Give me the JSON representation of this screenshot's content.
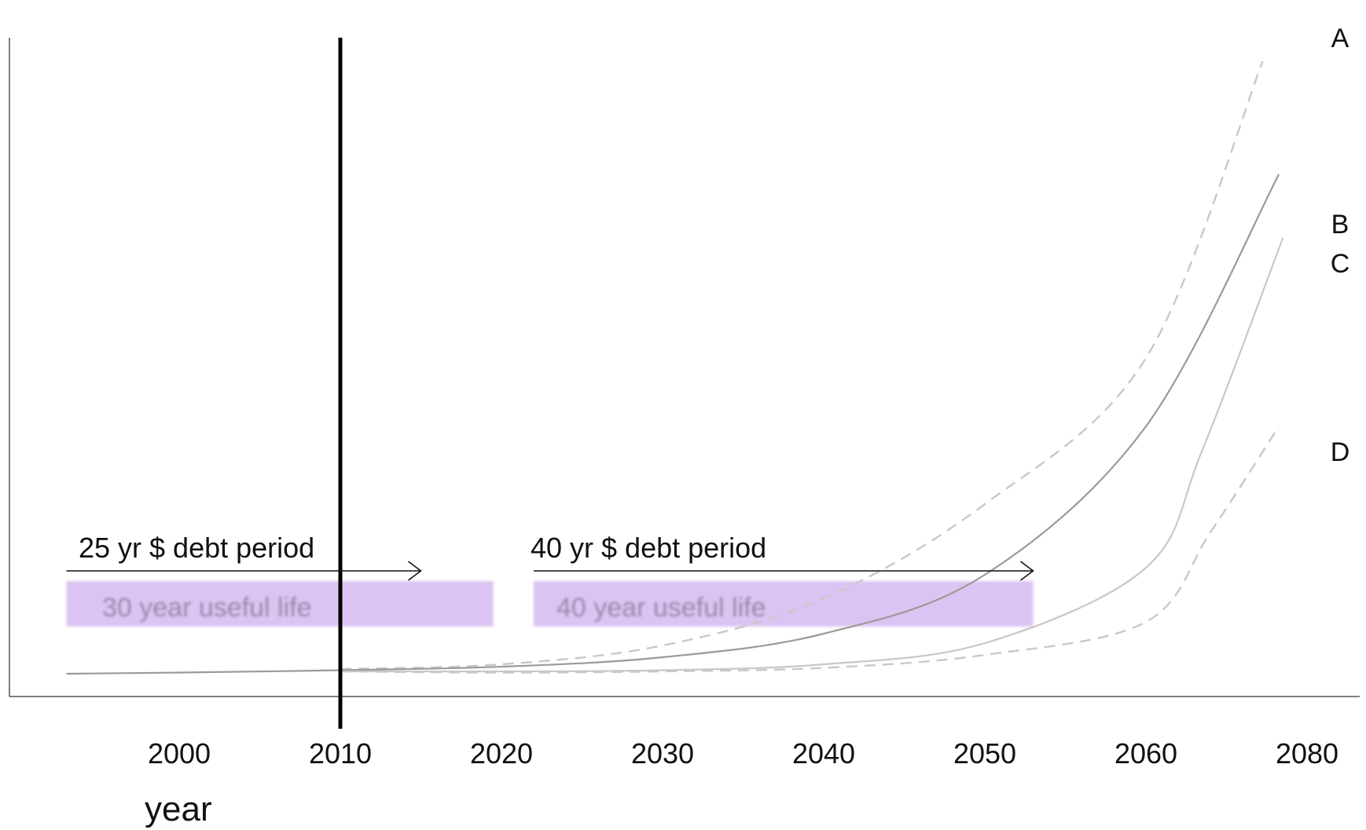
{
  "chart_data": {
    "type": "line",
    "title": "",
    "xlabel": "year",
    "ylabel": "",
    "x_ticks": [
      "2000",
      "2010",
      "2020",
      "2030",
      "2040",
      "2050",
      "2060",
      "2080"
    ],
    "grid": false,
    "current_year_marker": "2010",
    "series": [
      {
        "name": "A",
        "style": "dashed",
        "color": "#c8c8c8",
        "points": [
          [
            2010,
            0.02
          ],
          [
            2020,
            0.04
          ],
          [
            2030,
            0.12
          ],
          [
            2040,
            0.32
          ],
          [
            2050,
            0.72
          ],
          [
            2060,
            1.34
          ],
          [
            2074.5,
            2.6
          ]
        ]
      },
      {
        "name": "B",
        "style": "solid",
        "color": "#9a9a9a",
        "points": [
          [
            1993,
            0.0
          ],
          [
            2000,
            0.005
          ],
          [
            2010,
            0.015
          ],
          [
            2020,
            0.03
          ],
          [
            2030,
            0.07
          ],
          [
            2040,
            0.17
          ],
          [
            2050,
            0.42
          ],
          [
            2060,
            1.05
          ],
          [
            2076.5,
            2.12
          ]
        ]
      },
      {
        "name": "C",
        "style": "solid",
        "color": "#c8c8c8",
        "points": [
          [
            2010,
            0.01
          ],
          [
            2020,
            0.01
          ],
          [
            2030,
            0.015
          ],
          [
            2040,
            0.04
          ],
          [
            2050,
            0.13
          ],
          [
            2060,
            0.45
          ],
          [
            2067,
            0.95
          ],
          [
            2077,
            1.85
          ]
        ]
      },
      {
        "name": "D",
        "style": "dashed",
        "color": "#c8c8c8",
        "points": [
          [
            2010,
            0.01
          ],
          [
            2020,
            0.005
          ],
          [
            2030,
            0.01
          ],
          [
            2040,
            0.025
          ],
          [
            2050,
            0.08
          ],
          [
            2060,
            0.22
          ],
          [
            2068,
            0.6
          ],
          [
            2076.5,
            1.05
          ]
        ]
      }
    ],
    "annotations": [
      {
        "arrow_label": "25 yr $ debt period",
        "arrow_start": 1993,
        "arrow_end": 2015,
        "band_label": "30 year useful life",
        "band_start": 1993,
        "band_end": 2019.5,
        "band_color": "#dcc4f2"
      },
      {
        "arrow_label": "40 yr $ debt period",
        "arrow_start": 2022,
        "arrow_end": 2053,
        "band_label": "40 year useful life",
        "band_start": 2022,
        "band_end": 2053,
        "band_color": "#dcc4f2"
      }
    ]
  }
}
